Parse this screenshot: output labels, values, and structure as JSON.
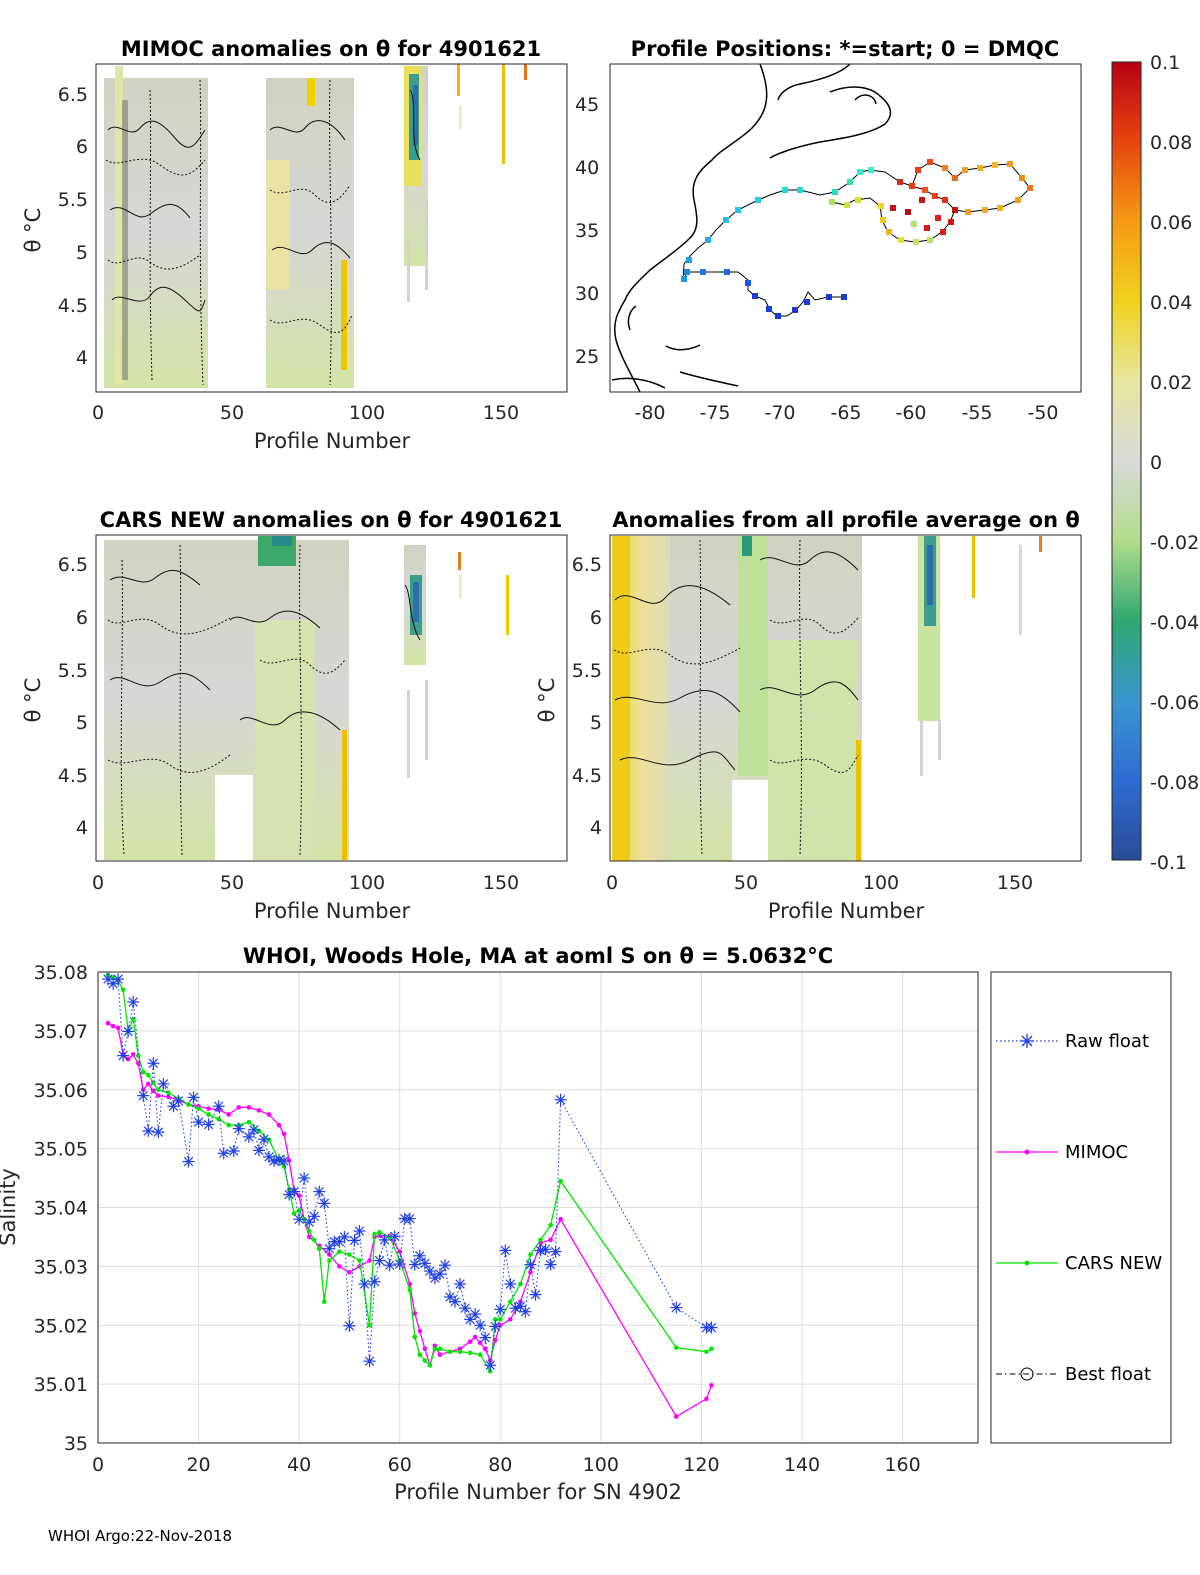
{
  "panels": {
    "mimoc": {
      "title": "MIMOC anomalies on θ  for 4901621",
      "xlabel": "Profile Number",
      "ylabel": "θ °C",
      "xticks": [
        "0",
        "50",
        "100",
        "150"
      ],
      "yticks": [
        "6.5",
        "6",
        "5.5",
        "5",
        "4.5",
        "4"
      ]
    },
    "positions": {
      "title": "Profile Positions: *=start; 0 = DMQC",
      "xticks": [
        "-80",
        "-75",
        "-70",
        "-65",
        "-60",
        "-55",
        "-50"
      ],
      "yticks": [
        "45",
        "40",
        "35",
        "30",
        "25"
      ]
    },
    "cars": {
      "title": "CARS NEW anomalies on θ for 4901621",
      "xlabel": "Profile Number",
      "ylabel": "θ °C",
      "xticks": [
        "0",
        "50",
        "100",
        "150"
      ],
      "yticks": [
        "6.5",
        "6",
        "5.5",
        "5",
        "4.5",
        "4"
      ]
    },
    "allavg": {
      "title": "Anomalies from all profile average on θ",
      "xlabel": "Profile Number",
      "ylabel": "θ °C",
      "xticks": [
        "0",
        "50",
        "100",
        "150"
      ],
      "yticks": [
        "6.5",
        "6",
        "5.5",
        "5",
        "4.5",
        "4"
      ]
    }
  },
  "colorbar": {
    "ticks": [
      "0.1",
      "0.08",
      "0.06",
      "0.04",
      "0.02",
      "0",
      "-0.02",
      "-0.04",
      "-0.06",
      "-0.08",
      "-0.1"
    ],
    "range": [
      -0.1,
      0.1
    ]
  },
  "footer": "WHOI Argo:22-Nov-2018",
  "colors": {
    "raw": "#1f3fe6",
    "mimoc": "#ff00ff",
    "cars": "#00e600",
    "best": "#000000"
  },
  "chart_data": {
    "type": "line",
    "title": "WHOI, Woods Hole, MA at aoml S on θ = 5.0632°C",
    "xlabel": "Profile Number for SN 4902",
    "ylabel": "Salinity",
    "xlim": [
      0,
      175
    ],
    "ylim": [
      35.0,
      35.08
    ],
    "xticks": [
      "0",
      "20",
      "40",
      "60",
      "80",
      "100",
      "120",
      "140",
      "160"
    ],
    "yticks": [
      "35.08",
      "35.07",
      "35.06",
      "35.05",
      "35.04",
      "35.03",
      "35.02",
      "35.01",
      "35"
    ],
    "legend_position": "outside-right",
    "series": [
      {
        "name": "Raw float",
        "style": "dotted, star markers",
        "x": [
          2,
          3,
          4,
          5,
          6,
          7,
          9,
          10,
          11,
          12,
          13,
          15,
          16,
          18,
          19,
          20,
          22,
          24,
          25,
          27,
          28,
          30,
          31,
          32,
          33,
          34,
          35,
          36,
          37,
          38,
          39,
          40,
          41,
          42,
          43,
          44,
          45,
          46,
          47,
          48,
          49,
          50,
          51,
          52,
          53,
          54,
          55,
          56,
          57,
          58,
          59,
          60,
          61,
          62,
          63,
          64,
          65,
          66,
          67,
          68,
          69,
          70,
          71,
          72,
          73,
          74,
          75,
          76,
          77,
          78,
          79,
          80,
          81,
          82,
          83,
          84,
          85,
          86,
          87,
          88,
          89,
          90,
          91,
          92,
          115,
          121,
          122
        ],
        "values": [
          35.0788,
          35.078,
          35.0788,
          35.0658,
          35.0699,
          35.0749,
          35.059,
          35.053,
          35.0645,
          35.0528,
          35.061,
          35.0572,
          35.0581,
          35.0478,
          35.0587,
          35.0545,
          35.0541,
          35.0572,
          35.0492,
          35.0496,
          35.0534,
          35.052,
          35.0532,
          35.0497,
          35.0516,
          35.0486,
          35.0479,
          35.0481,
          35.0479,
          35.0422,
          35.0427,
          35.038,
          35.045,
          35.0375,
          35.0385,
          35.0427,
          35.0407,
          35.033,
          35.0342,
          35.0342,
          35.035,
          35.0199,
          35.0344,
          35.036,
          35.027,
          35.0139,
          35.0274,
          35.031,
          35.0345,
          35.0302,
          35.0351,
          35.0304,
          35.0381,
          35.0381,
          35.0303,
          35.0318,
          35.0305,
          35.0292,
          35.028,
          35.0287,
          35.0302,
          35.0248,
          35.024,
          35.027,
          35.0229,
          35.021,
          35.0219,
          35.02,
          35.0179,
          35.0132,
          35.0198,
          35.0227,
          35.0327,
          35.027,
          35.0229,
          35.0232,
          35.0223,
          35.0303,
          35.0252,
          35.0327,
          35.0329,
          35.0303,
          35.0325,
          35.0583,
          35.023,
          35.0196,
          35.0196
        ]
      },
      {
        "name": "MIMOC",
        "style": "solid, point markers",
        "x": [
          2,
          3,
          4,
          5,
          6,
          7,
          8,
          9,
          10,
          11,
          12,
          14,
          16,
          18,
          20,
          22,
          24,
          26,
          28,
          30,
          32,
          34,
          36,
          37,
          38,
          39,
          40,
          41,
          42,
          44,
          46,
          48,
          50,
          52,
          54,
          55,
          56,
          58,
          60,
          62,
          63,
          64,
          65,
          66,
          67,
          68,
          70,
          72,
          74,
          75,
          76,
          77,
          78,
          79,
          80,
          82,
          84,
          86,
          88,
          90,
          92,
          115,
          121,
          122
        ],
        "values": [
          35.0713,
          35.0708,
          35.0705,
          35.066,
          35.0652,
          35.066,
          35.0645,
          35.06,
          35.061,
          35.0598,
          35.059,
          35.0588,
          35.0582,
          35.0575,
          35.0572,
          35.0568,
          35.0566,
          35.0558,
          35.057,
          35.057,
          35.0565,
          35.0558,
          35.054,
          35.0525,
          35.048,
          35.043,
          35.042,
          35.038,
          35.035,
          35.0335,
          35.032,
          35.03,
          35.029,
          35.03,
          35.031,
          35.035,
          35.0352,
          35.0352,
          35.0325,
          35.027,
          35.022,
          35.019,
          35.016,
          35.0132,
          35.0165,
          35.015,
          35.0155,
          35.016,
          35.0172,
          35.018,
          35.017,
          35.016,
          35.014,
          35.0175,
          35.02,
          35.021,
          35.024,
          35.029,
          35.034,
          35.0345,
          35.038,
          35.0045,
          35.0075,
          35.0098
        ]
      },
      {
        "name": "CARS NEW",
        "style": "solid, point markers",
        "x": [
          2,
          3,
          4,
          5,
          6,
          7,
          8,
          9,
          10,
          11,
          12,
          14,
          16,
          18,
          20,
          22,
          24,
          26,
          28,
          30,
          32,
          34,
          36,
          37,
          38,
          39,
          40,
          41,
          42,
          43,
          44,
          45,
          46,
          48,
          50,
          52,
          54,
          55,
          56,
          58,
          60,
          62,
          63,
          64,
          65,
          66,
          67,
          68,
          70,
          72,
          74,
          76,
          78,
          79,
          80,
          82,
          84,
          86,
          88,
          90,
          92,
          115,
          121,
          122
        ],
        "values": [
          35.0795,
          35.079,
          35.0785,
          35.077,
          35.07,
          35.072,
          35.0658,
          35.063,
          35.0625,
          35.0612,
          35.06,
          35.0595,
          35.0585,
          35.0575,
          35.0568,
          35.0558,
          35.055,
          35.054,
          35.054,
          35.0545,
          35.053,
          35.0515,
          35.048,
          35.047,
          35.043,
          35.039,
          35.0395,
          35.038,
          35.036,
          35.0345,
          35.033,
          35.024,
          35.031,
          35.0325,
          35.032,
          35.031,
          35.02,
          35.0355,
          35.0358,
          35.035,
          35.031,
          35.026,
          35.018,
          35.015,
          35.014,
          35.0132,
          35.016,
          35.016,
          35.0155,
          35.0155,
          35.0153,
          35.015,
          35.0122,
          35.021,
          35.021,
          35.024,
          35.027,
          35.032,
          35.0345,
          35.037,
          35.0445,
          35.0162,
          35.0155,
          35.016
        ]
      },
      {
        "name": "Best float",
        "style": "dash-dot, circle markers",
        "x": [],
        "values": []
      }
    ]
  }
}
